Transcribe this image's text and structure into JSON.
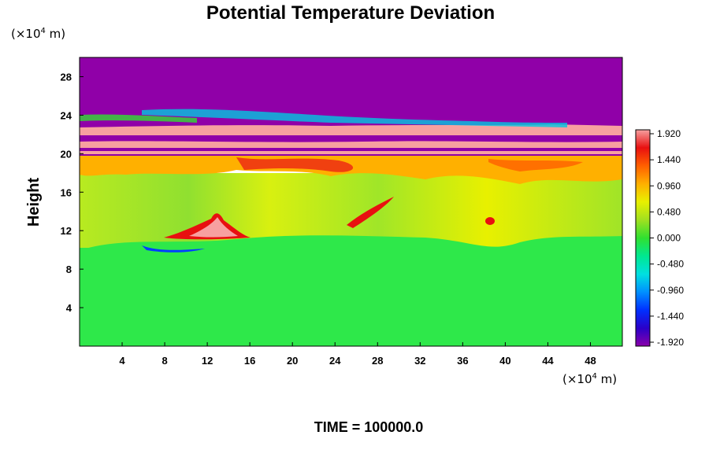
{
  "chart_data": {
    "type": "heatmap",
    "title": "Potential Temperature Deviation",
    "ylabel": "Height",
    "xlabel": "",
    "x_unit_prefix": "(×10",
    "x_unit_exp": "4",
    "x_unit_suffix": " m)",
    "y_unit_prefix": "(×10",
    "y_unit_exp": "4",
    "y_unit_suffix": " m)",
    "xlim": [
      0,
      51
    ],
    "ylim": [
      0,
      30
    ],
    "x_ticks": [
      4,
      8,
      12,
      16,
      20,
      24,
      28,
      32,
      36,
      40,
      44,
      48
    ],
    "y_ticks": [
      4,
      8,
      12,
      16,
      20,
      24,
      28
    ],
    "colorbar": {
      "ticks": [
        "1.920",
        "1.440",
        "0.960",
        "0.480",
        "0.000",
        "-0.480",
        "-0.960",
        "-1.440",
        "-1.920"
      ],
      "range": [
        -1.92,
        1.92
      ],
      "colors": [
        "#8a00aa",
        "#2a00c8",
        "#0030ff",
        "#0090ff",
        "#00e0e0",
        "#00e890",
        "#30e030",
        "#a0e020",
        "#e8f000",
        "#ffb000",
        "#ff6000",
        "#e81010",
        "#f7a0a0"
      ]
    },
    "regions": [
      {
        "y_range": [
          20,
          30
        ],
        "value": -1.92
      },
      {
        "y_range": [
          22,
          22.6
        ],
        "value": 1.92
      },
      {
        "y_range": [
          21,
          21.5
        ],
        "value": 1.92
      },
      {
        "y_range": [
          20.3,
          20.6
        ],
        "value": 1.92
      },
      {
        "y_range": [
          18,
          20
        ],
        "value": 1.1
      },
      {
        "y_range": [
          12,
          18
        ],
        "value": 0.3
      },
      {
        "y_range": [
          0,
          11
        ],
        "value": 0.0
      }
    ],
    "grid": false,
    "legend": "colorbar-right"
  },
  "footer": {
    "time_label": "TIME = 100000.0"
  }
}
